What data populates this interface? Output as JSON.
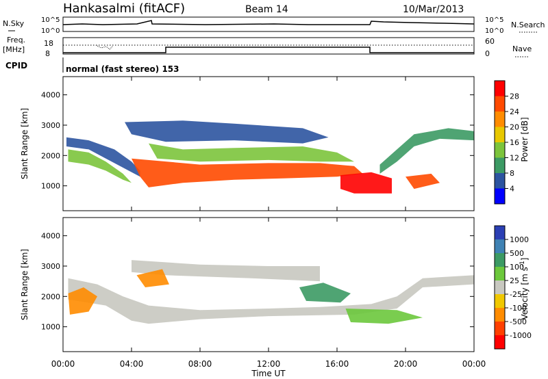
{
  "header": {
    "station": "Hankasalmi (fitACF)",
    "beam": "Beam 14",
    "date": "10/Mar/2013"
  },
  "nsky_panel": {
    "left_label": "N.Sky",
    "right_label": "N.Search",
    "left_ticks": [
      "10^5",
      "10^0"
    ],
    "right_ticks": [
      "10^5",
      "10^0"
    ]
  },
  "freq_panel": {
    "left_label_line1": "Freq.",
    "left_label_line2": "[MHz]",
    "right_label": "Nave",
    "left_ticks": [
      "18",
      "8"
    ],
    "right_ticks": [
      "60",
      "0"
    ]
  },
  "cpid_panel": {
    "label": "CPID",
    "text": "normal (fast stereo) 153"
  },
  "x_axis": {
    "label": "Time UT",
    "ticks": [
      "00:00",
      "04:00",
      "08:00",
      "12:00",
      "16:00",
      "20:00",
      "00:00"
    ]
  },
  "chart_data": [
    {
      "type": "heatmap",
      "name": "power",
      "ylabel": "Slant Range [km]",
      "yticks": [
        1000,
        2000,
        3000,
        4000
      ],
      "ylim": [
        180,
        4600
      ],
      "xlim_hours": [
        0,
        24
      ],
      "colorbar": {
        "label": "Power [dB]",
        "ticks": [
          "28",
          "24",
          "20",
          "16",
          "12",
          "8",
          "4"
        ],
        "colors": [
          "#ff0000",
          "#ff4a00",
          "#ff8c00",
          "#e8c800",
          "#7cc43c",
          "#3c9a64",
          "#2c54a0",
          "#0000ff"
        ]
      },
      "bands": [
        {
          "color": "#2c54a0",
          "pts": [
            [
              0.2,
              2600
            ],
            [
              1.5,
              2500
            ],
            [
              3,
              2200
            ],
            [
              4,
              1800
            ],
            [
              4.5,
              1500
            ],
            [
              4.5,
              1300
            ],
            [
              3.5,
              1600
            ],
            [
              2.5,
              1900
            ],
            [
              1.5,
              2200
            ],
            [
              0.2,
              2300
            ]
          ]
        },
        {
          "color": "#7cc43c",
          "pts": [
            [
              0.3,
              2200
            ],
            [
              1.5,
              2100
            ],
            [
              2.5,
              1800
            ],
            [
              3.5,
              1400
            ],
            [
              4,
              1100
            ],
            [
              3.5,
              1200
            ],
            [
              2.5,
              1500
            ],
            [
              1.5,
              1700
            ],
            [
              0.3,
              1800
            ]
          ]
        },
        {
          "color": "#ff4a00",
          "pts": [
            [
              4,
              1900
            ],
            [
              8,
              1700
            ],
            [
              12,
              1750
            ],
            [
              15,
              1750
            ],
            [
              17,
              1650
            ],
            [
              17.5,
              1400
            ],
            [
              16,
              1300
            ],
            [
              13,
              1250
            ],
            [
              10,
              1200
            ],
            [
              7,
              1100
            ],
            [
              5,
              950
            ],
            [
              4.5,
              1300
            ]
          ]
        },
        {
          "color": "#ff0000",
          "pts": [
            [
              16.2,
              1350
            ],
            [
              18,
              1450
            ],
            [
              19.2,
              1250
            ],
            [
              19.2,
              750
            ],
            [
              17,
              750
            ],
            [
              16.2,
              900
            ]
          ]
        },
        {
          "color": "#7cc43c",
          "pts": [
            [
              5,
              2400
            ],
            [
              7,
              2200
            ],
            [
              10,
              2250
            ],
            [
              14,
              2300
            ],
            [
              16,
              2100
            ],
            [
              17,
              1800
            ],
            [
              15,
              1800
            ],
            [
              12,
              1850
            ],
            [
              8,
              1800
            ],
            [
              5.5,
              1900
            ]
          ]
        },
        {
          "color": "#2c54a0",
          "pts": [
            [
              3.6,
              3100
            ],
            [
              7,
              3150
            ],
            [
              10,
              3050
            ],
            [
              14,
              2900
            ],
            [
              15.5,
              2600
            ],
            [
              14,
              2400
            ],
            [
              10,
              2500
            ],
            [
              6,
              2450
            ],
            [
              4,
              2700
            ]
          ]
        },
        {
          "color": "#3c9a64",
          "pts": [
            [
              18.5,
              1700
            ],
            [
              19.5,
              2200
            ],
            [
              20.5,
              2700
            ],
            [
              22.5,
              2900
            ],
            [
              24,
              2800
            ],
            [
              24,
              2500
            ],
            [
              22,
              2550
            ],
            [
              20.5,
              2300
            ],
            [
              19.5,
              1800
            ],
            [
              18.5,
              1400
            ]
          ]
        },
        {
          "color": "#ff4a00",
          "pts": [
            [
              20,
              1300
            ],
            [
              21.5,
              1400
            ],
            [
              22,
              1100
            ],
            [
              20.5,
              900
            ]
          ]
        }
      ]
    },
    {
      "type": "heatmap",
      "name": "velocity",
      "ylabel": "Slant Range [km]",
      "yticks": [
        1000,
        2000,
        3000,
        4000
      ],
      "ylim": [
        180,
        4600
      ],
      "xlim_hours": [
        0,
        24
      ],
      "colorbar": {
        "label": "Velocity [m s^-1]",
        "ticks": [
          "1000",
          "500",
          "100",
          "25",
          "-25",
          "-100",
          "-500",
          "-1000"
        ],
        "colors": [
          "#2b3fb4",
          "#3f82b4",
          "#3c9a64",
          "#6cc83c",
          "#c8c8c0",
          "#f0c800",
          "#ff8c00",
          "#ff4000",
          "#ff0000"
        ]
      },
      "bands": [
        {
          "color": "#c8c8c0",
          "pts": [
            [
              0.3,
              2600
            ],
            [
              2,
              2400
            ],
            [
              3.5,
              2000
            ],
            [
              5,
              1700
            ],
            [
              8,
              1550
            ],
            [
              12,
              1600
            ],
            [
              15,
              1650
            ],
            [
              18,
              1750
            ],
            [
              19.5,
              2000
            ],
            [
              21,
              2600
            ],
            [
              24,
              2700
            ],
            [
              24,
              2400
            ],
            [
              21,
              2300
            ],
            [
              19.5,
              1600
            ],
            [
              17,
              1400
            ],
            [
              12,
              1350
            ],
            [
              8,
              1250
            ],
            [
              5,
              1100
            ],
            [
              4,
              1200
            ],
            [
              2.5,
              1700
            ],
            [
              0.3,
              1900
            ]
          ]
        },
        {
          "color": "#c8c8c0",
          "pts": [
            [
              4,
              3200
            ],
            [
              8,
              3050
            ],
            [
              12,
              3000
            ],
            [
              15,
              3000
            ],
            [
              15,
              2500
            ],
            [
              11,
              2600
            ],
            [
              6,
              2700
            ],
            [
              4,
              2800
            ]
          ]
        },
        {
          "color": "#ff8c00",
          "pts": [
            [
              0.3,
              2100
            ],
            [
              1.2,
              2300
            ],
            [
              2,
              2000
            ],
            [
              1.5,
              1500
            ],
            [
              0.4,
              1400
            ]
          ]
        },
        {
          "color": "#3c9a64",
          "pts": [
            [
              13.8,
              2300
            ],
            [
              15.2,
              2450
            ],
            [
              16.8,
              2100
            ],
            [
              16.2,
              1800
            ],
            [
              14.2,
              1850
            ]
          ]
        },
        {
          "color": "#6cc83c",
          "pts": [
            [
              16.5,
              1600
            ],
            [
              19.5,
              1550
            ],
            [
              21,
              1300
            ],
            [
              19,
              1100
            ],
            [
              16.8,
              1150
            ]
          ]
        },
        {
          "color": "#ff8c00",
          "pts": [
            [
              4.3,
              2700
            ],
            [
              5.8,
              2900
            ],
            [
              6.2,
              2400
            ],
            [
              4.8,
              2300
            ]
          ]
        }
      ]
    }
  ]
}
